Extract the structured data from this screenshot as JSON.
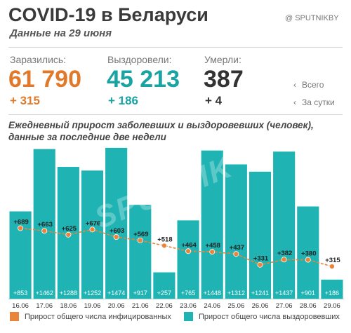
{
  "header": {
    "title": "COVID-19 в Беларуси",
    "subtitle": "Данные на 29 июня",
    "handle": "@ SPUTNIKBY"
  },
  "stats": {
    "infected": {
      "label": "Заразились:",
      "value": "61 790",
      "delta": "+ 315",
      "color": "#e07a2a"
    },
    "recovered": {
      "label": "Выздоровели:",
      "value": "45 213",
      "delta": "+ 186",
      "color": "#1aa3a3"
    },
    "died": {
      "label": "Умерли:",
      "value": "387",
      "delta": "+ 4",
      "color": "#333333"
    }
  },
  "stat_legend": {
    "total": "Всего",
    "daily": "За сутки"
  },
  "chart_heading": "Ежедневный прирост заболевших и выздоровевших (человек), данные за последние две недели",
  "watermark": "SPUTNIK",
  "legend": {
    "infected": "Прирост общего числа инфицированных",
    "recovered": "Прирост общего числа выздоровевших"
  },
  "colors": {
    "bar": "#1fb3b3",
    "bar_dark": "#17a0a0",
    "line": "#e8853a"
  },
  "chart_data": {
    "type": "bar",
    "categories": [
      "16.06",
      "17.06",
      "18.06",
      "19.06",
      "20.06",
      "21.06",
      "22.06",
      "23.06",
      "24.06",
      "25.06",
      "26.06",
      "27.06",
      "28.06",
      "29.06"
    ],
    "series": [
      {
        "name": "Прирост общего числа выздоровевших",
        "type": "bar",
        "values": [
          853,
          1462,
          1288,
          1252,
          1474,
          917,
          257,
          765,
          1448,
          1312,
          1241,
          1437,
          901,
          186
        ]
      },
      {
        "name": "Прирост общего числа инфицированных",
        "type": "line",
        "values": [
          689,
          663,
          625,
          676,
          603,
          569,
          518,
          464,
          458,
          437,
          331,
          382,
          380,
          315
        ]
      }
    ],
    "grid": false
  }
}
